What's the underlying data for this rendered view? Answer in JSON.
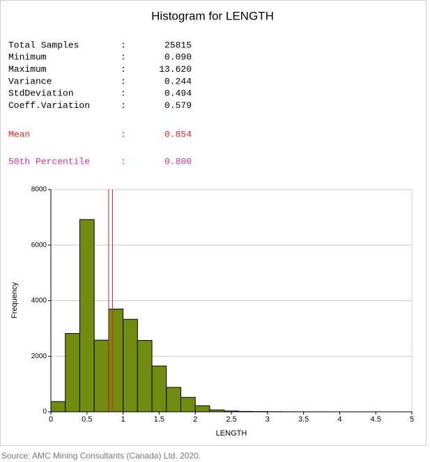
{
  "chart_data": {
    "type": "histogram",
    "title": "Histogram for LENGTH",
    "stats": [
      {
        "label": "Total Samples",
        "value": 25815
      },
      {
        "label": "Minimum",
        "value": 0.09,
        "value_label": "0.090"
      },
      {
        "label": "Maximum",
        "value": 13.62,
        "value_label": "13.620"
      },
      {
        "label": "Variance",
        "value": 0.244
      },
      {
        "label": "StdDeviation",
        "value": 0.494
      },
      {
        "label": "Coeff.Variation",
        "value": 0.579
      }
    ],
    "markers": [
      {
        "label": "Mean",
        "value": 0.854,
        "color": "#e8212a"
      },
      {
        "label": "50th Percentile",
        "value": 0.8,
        "value_label": "0.800",
        "color": "#cc3399",
        "line_color": "#e8212a"
      }
    ],
    "bins": [
      0,
      0.2,
      0.4,
      0.6,
      0.8,
      1,
      1.2,
      1.4,
      1.6,
      1.8,
      2,
      2.2,
      2.4,
      2.6,
      2.8,
      3,
      3.2,
      3.4,
      3.6,
      3.8,
      4,
      4.2,
      4.4,
      4.6,
      4.8,
      5
    ],
    "values": [
      370,
      2820,
      6920,
      2580,
      3700,
      3330,
      2570,
      1650,
      880,
      520,
      220,
      70,
      30,
      15,
      10,
      5,
      3,
      2,
      2,
      1,
      1,
      1,
      1,
      0,
      0
    ],
    "color": "#718c10",
    "x_label": "LENGTH",
    "y_label": "Frequency",
    "xlim": [
      0,
      5
    ],
    "xticks": [
      0,
      0.5,
      1,
      1.5,
      2,
      2.5,
      3,
      3.5,
      4,
      4.5,
      5
    ],
    "ylim": [
      0,
      8000
    ],
    "yticks": [
      0,
      2000,
      4000,
      6000,
      8000
    ],
    "grid": true
  },
  "source": "Source: AMC Mining Consultants (Canada) Ltd. 2020."
}
